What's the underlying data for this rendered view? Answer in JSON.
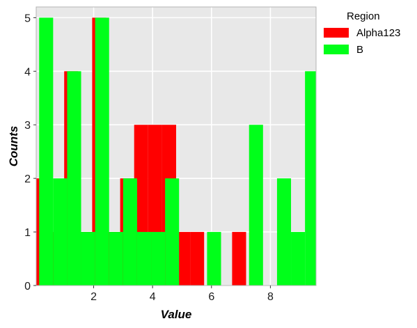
{
  "chart_data": {
    "type": "bar",
    "subtype": "overlapping histogram",
    "title": "",
    "xlabel": "Value",
    "ylabel": "Counts",
    "xlim": [
      0.05,
      9.55
    ],
    "ylim": [
      0,
      5.2
    ],
    "x_ticks": [
      2,
      4,
      6,
      8
    ],
    "y_ticks": [
      0,
      1,
      2,
      3,
      4,
      5
    ],
    "grid": true,
    "legend_title": "Region",
    "legend_position": "right",
    "bin_width": 0.475,
    "series": [
      {
        "name": "Alpha123",
        "color": "#ff0000",
        "bins": [
          {
            "x0": 0.05,
            "x1": 0.525,
            "count": 2
          },
          {
            "x0": 0.525,
            "x1": 1.0,
            "count": 1
          },
          {
            "x0": 1.0,
            "x1": 1.475,
            "count": 4
          },
          {
            "x0": 1.475,
            "x1": 1.95,
            "count": 1
          },
          {
            "x0": 1.95,
            "x1": 2.425,
            "count": 5
          },
          {
            "x0": 2.425,
            "x1": 2.9,
            "count": 1
          },
          {
            "x0": 2.9,
            "x1": 3.375,
            "count": 2
          },
          {
            "x0": 3.375,
            "x1": 3.85,
            "count": 3
          },
          {
            "x0": 3.85,
            "x1": 4.325,
            "count": 3
          },
          {
            "x0": 4.325,
            "x1": 4.8,
            "count": 3
          },
          {
            "x0": 4.8,
            "x1": 5.275,
            "count": 1
          },
          {
            "x0": 5.275,
            "x1": 5.75,
            "count": 1
          },
          {
            "x0": 6.7,
            "x1": 7.175,
            "count": 1
          }
        ]
      },
      {
        "name": "B",
        "color": "#00ff1a",
        "bins": [
          {
            "x0": 0.15,
            "x1": 0.625,
            "count": 5
          },
          {
            "x0": 0.625,
            "x1": 1.1,
            "count": 2
          },
          {
            "x0": 1.1,
            "x1": 1.575,
            "count": 4
          },
          {
            "x0": 1.575,
            "x1": 2.05,
            "count": 1
          },
          {
            "x0": 2.05,
            "x1": 2.525,
            "count": 5
          },
          {
            "x0": 2.525,
            "x1": 3.0,
            "count": 1
          },
          {
            "x0": 3.0,
            "x1": 3.475,
            "count": 2
          },
          {
            "x0": 3.475,
            "x1": 3.95,
            "count": 1
          },
          {
            "x0": 3.95,
            "x1": 4.425,
            "count": 1
          },
          {
            "x0": 4.425,
            "x1": 4.9,
            "count": 2
          },
          {
            "x0": 5.85,
            "x1": 6.325,
            "count": 1
          },
          {
            "x0": 7.275,
            "x1": 7.75,
            "count": 3
          },
          {
            "x0": 8.225,
            "x1": 8.7,
            "count": 2
          },
          {
            "x0": 8.7,
            "x1": 9.175,
            "count": 1
          },
          {
            "x0": 9.175,
            "x1": 9.65,
            "count": 4
          }
        ]
      }
    ]
  }
}
